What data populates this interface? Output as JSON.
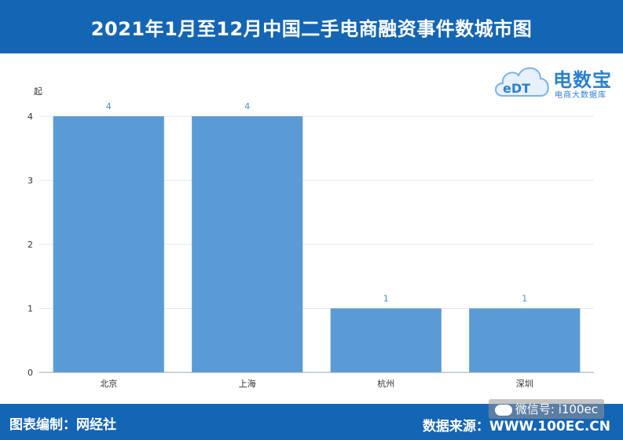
{
  "header": {
    "title": "2021年1月至12月中国二手电商融资事件数城市图"
  },
  "logo": {
    "brand": "电数宝",
    "sub": "电商大数据库",
    "mark": "eDT"
  },
  "footer": {
    "editor": "图表编制：网经社",
    "source": "数据来源：WWW.100EC.CN",
    "wechat": "微信号: i100ec"
  },
  "colors": {
    "bar": "#5b9bd5",
    "header": "#1565b5",
    "value_label": "#4a8fd0"
  },
  "chart_data": {
    "type": "bar",
    "categories": [
      "北京",
      "上海",
      "杭州",
      "深圳"
    ],
    "values": [
      4,
      4,
      1,
      1
    ],
    "ylabel": "起",
    "ylim": [
      0,
      4
    ],
    "yticks": [
      0,
      1,
      2,
      3,
      4
    ],
    "grid": true
  }
}
